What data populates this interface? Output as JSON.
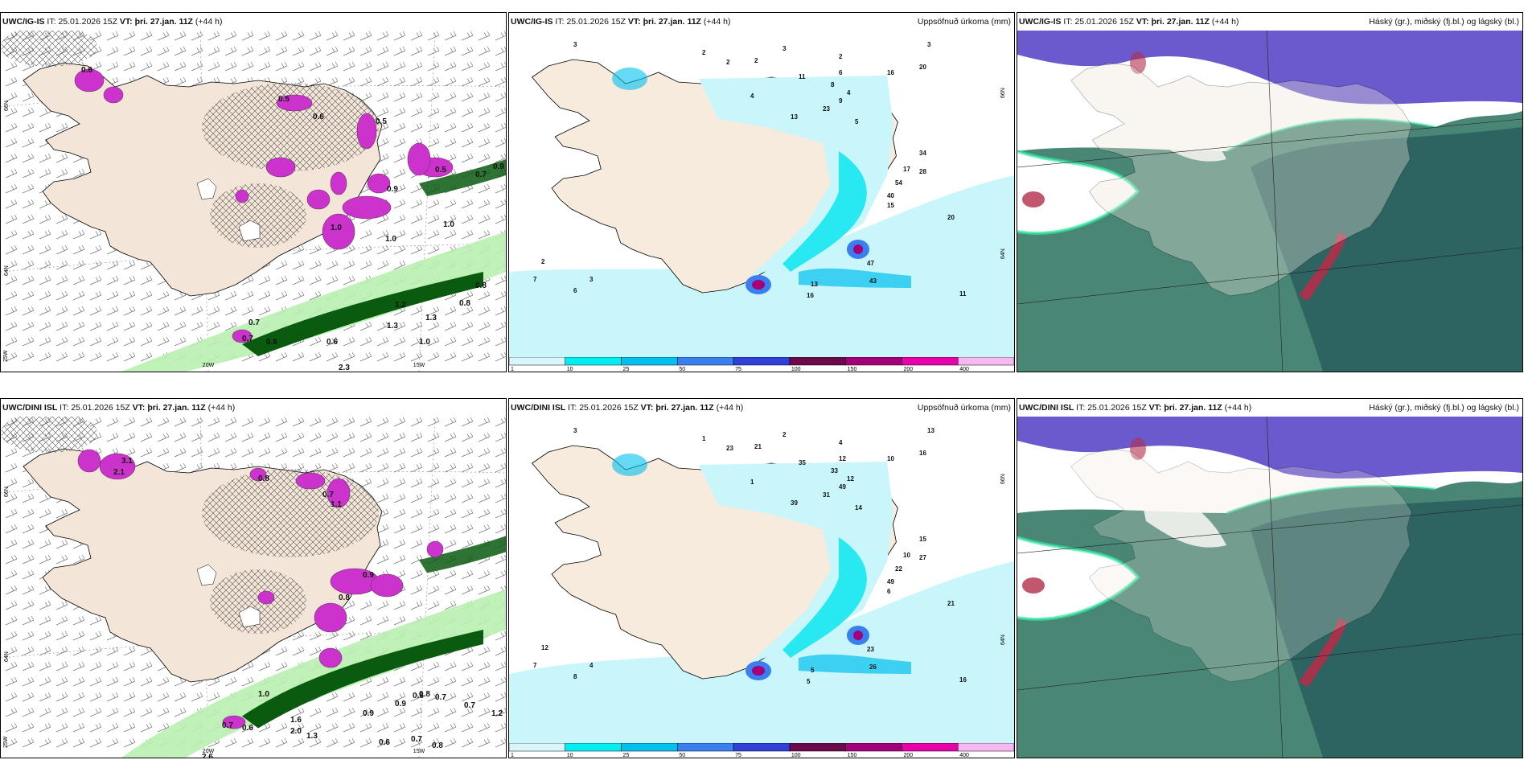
{
  "panels": [
    {
      "id": "p1",
      "model": "UWC/IG-IS",
      "it_label": "IT:",
      "it": "25.01.2026 15Z",
      "vt_label": "VT:",
      "vt": "þri. 27.jan. 11Z",
      "lead": "(+44 h)",
      "right_title": "",
      "lat_labels": [
        "66N",
        "64N"
      ],
      "lon_labels": [
        "20W",
        "15W"
      ],
      "edge_labels": [
        "25W"
      ],
      "values": [
        "0.6",
        "0.5",
        "0.9",
        "0.5",
        "0.6",
        "0.7",
        "0.5",
        "0.9",
        "1.0",
        "1.0",
        "0.7",
        "0.6",
        "0.7",
        "0.8",
        "1.0",
        "0.8",
        "1.0",
        "1.2",
        "1.3",
        "0.6",
        "1.3",
        "2.3"
      ]
    },
    {
      "id": "p2",
      "model": "UWC/IG-IS",
      "it_label": "IT:",
      "it": "25.01.2026 15Z",
      "vt_label": "VT:",
      "vt": "þri. 27.jan. 11Z",
      "lead": "(+44 h)",
      "right_title": "Uppsöfnuð úrkoma (mm)",
      "lat_labels": [
        "66N",
        "64N"
      ],
      "values": [
        "3",
        "2",
        "3",
        "2",
        "3",
        "6",
        "16",
        "20",
        "2",
        "2",
        "13",
        "23",
        "9",
        "11",
        "8",
        "4",
        "5",
        "34",
        "17",
        "28",
        "54",
        "40",
        "15",
        "20",
        "47",
        "43",
        "11",
        "13",
        "16",
        "2",
        "7",
        "6",
        "3",
        "4"
      ]
    },
    {
      "id": "p3",
      "model": "UWC/IG-IS",
      "it_label": "IT:",
      "it": "25.01.2026 15Z",
      "vt_label": "VT:",
      "vt": "þri. 27.jan. 11Z",
      "lead": "(+44 h)",
      "right_title": "Háský (gr.), miðský (fj.bl.) og lágský (bl.)"
    },
    {
      "id": "p4",
      "model": "UWC/DINI ISL",
      "it_label": "IT:",
      "it": "25.01.2026 15Z",
      "vt_label": "VT:",
      "vt": "þri. 27.jan. 11Z",
      "lead": "(+44 h)",
      "right_title": "",
      "lat_labels": [
        "66N",
        "64N"
      ],
      "lon_labels": [
        "20W",
        "15W"
      ],
      "edge_labels": [
        "25W"
      ],
      "values": [
        "3.1",
        "2.1",
        "0.7",
        "1.1",
        "0.8",
        "0.9",
        "0.8",
        "0.6",
        "0.7",
        "0.8",
        "0.9",
        "0.6",
        "0.7",
        "1.0",
        "0.9",
        "2.0",
        "1.3",
        "0.6",
        "0.7",
        "0.8",
        "1.6",
        "2.6",
        "0.7",
        "1.2"
      ]
    },
    {
      "id": "p5",
      "model": "UWC/DINI ISL",
      "it_label": "IT:",
      "it": "25.01.2026 15Z",
      "vt_label": "VT:",
      "vt": "þri. 27.jan. 11Z",
      "lead": "(+44 h)",
      "right_title": "Uppsöfnuð úrkoma (mm)",
      "lat_labels": [
        "66N",
        "64N"
      ],
      "values": [
        "3",
        "1",
        "2",
        "4",
        "13",
        "12",
        "10",
        "16",
        "23",
        "21",
        "39",
        "31",
        "49",
        "35",
        "33",
        "12",
        "14",
        "15",
        "10",
        "27",
        "22",
        "49",
        "6",
        "21",
        "23",
        "26",
        "16",
        "5",
        "5",
        "12",
        "7",
        "8",
        "4",
        "1"
      ]
    },
    {
      "id": "p6",
      "model": "UWC/DINI ISL",
      "it_label": "IT:",
      "it": "25.01.2026 15Z",
      "vt_label": "VT:",
      "vt": "þri. 27.jan. 11Z",
      "lead": "(+44 h)",
      "right_title": "Háský (gr.), miðský (fj.bl.) og lágský (bl.)"
    }
  ],
  "colorbar": {
    "labels": [
      "1",
      "10",
      "25",
      "50",
      "75",
      "100",
      "150",
      "200",
      "400"
    ],
    "colors": [
      "#d8f6fb",
      "#00eef2",
      "#00c0ee",
      "#3a7ff0",
      "#3040d8",
      "#6a0a4a",
      "#a3007a",
      "#e800a8",
      "#f6b8f0"
    ]
  },
  "colors": {
    "land": "#f3e6d8",
    "light_green": "#b8f0b0",
    "dark_green": "#0a5a10",
    "magenta": "#cc33cc",
    "sea_precip": "#c0f4fa",
    "cloud_high": "#6a5acd",
    "cloud_mid": "#3f7f6f",
    "cloud_low": "#2a6060"
  }
}
